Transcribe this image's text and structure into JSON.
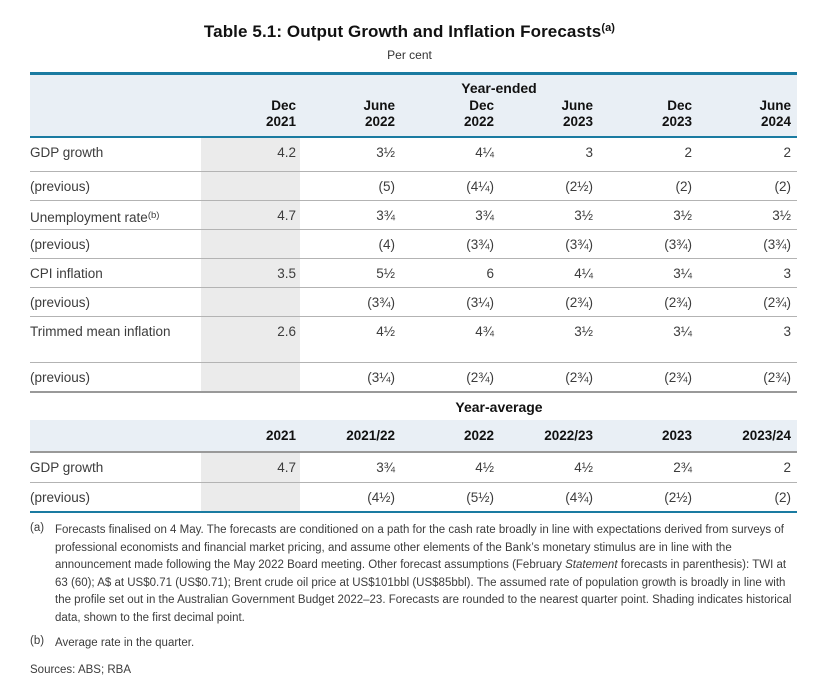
{
  "title": {
    "text": "Table 5.1: Output Growth and Inflation Forecasts",
    "sup": "(a)"
  },
  "subtitle": "Per cent",
  "colors": {
    "accent_teal": "#1a7ba1",
    "header_band": "#e9eff5",
    "historical_shading": "#ebebeb"
  },
  "year_ended": {
    "section_label": "Year-ended",
    "columns": [
      {
        "line1": "Dec",
        "line2": "2021"
      },
      {
        "line1": "June",
        "line2": "2022"
      },
      {
        "line1": "Dec",
        "line2": "2022"
      },
      {
        "line1": "June",
        "line2": "2023"
      },
      {
        "line1": "Dec",
        "line2": "2023"
      },
      {
        "line1": "June",
        "line2": "2024"
      }
    ],
    "rows": [
      {
        "label": "GDP growth",
        "values": [
          "4.2",
          "3½",
          "4¼",
          "3",
          "2",
          "2"
        ]
      },
      {
        "label": "(previous)",
        "values": [
          "",
          "(5)",
          "(4¼)",
          "(2½)",
          "(2)",
          "(2)"
        ]
      },
      {
        "label": "Unemployment rate",
        "sup": "(b)",
        "values": [
          "4.7",
          "3¾",
          "3¾",
          "3½",
          "3½",
          "3½"
        ]
      },
      {
        "label": "(previous)",
        "values": [
          "",
          "(4)",
          "(3¾)",
          "(3¾)",
          "(3¾)",
          "(3¾)"
        ]
      },
      {
        "label": "CPI inflation",
        "values": [
          "3.5",
          "5½",
          "6",
          "4¼",
          "3¼",
          "3"
        ]
      },
      {
        "label": "(previous)",
        "values": [
          "",
          "(3¾)",
          "(3¼)",
          "(2¾)",
          "(2¾)",
          "(2¾)"
        ]
      },
      {
        "label": "Trimmed mean inflation",
        "values": [
          "2.6",
          "4½",
          "4¾",
          "3½",
          "3¼",
          "3"
        ]
      },
      {
        "label": "(previous)",
        "values": [
          "",
          "(3¼)",
          "(2¾)",
          "(2¾)",
          "(2¾)",
          "(2¾)"
        ]
      }
    ]
  },
  "year_average": {
    "section_label": "Year-average",
    "columns": [
      "2021",
      "2021/22",
      "2022",
      "2022/23",
      "2023",
      "2023/24"
    ],
    "rows": [
      {
        "label": "GDP growth",
        "values": [
          "4.7",
          "3¾",
          "4½",
          "4½",
          "2¾",
          "2"
        ]
      },
      {
        "label": "(previous)",
        "values": [
          "",
          "(4½)",
          "(5½)",
          "(4¾)",
          "(2½)",
          "(2)"
        ]
      }
    ]
  },
  "footnotes": {
    "a": {
      "label": "(a)",
      "text1": "Forecasts finalised on 4 May. The forecasts are conditioned on a path for the cash rate broadly in line with expectations derived from surveys of professional economists and financial market pricing, and assume other elements of the Bank’s monetary stimulus are in line with the announcement made following the May 2022 Board meeting. Other forecast assumptions (February ",
      "italic": "Statement",
      "text2": " forecasts in parenthesis): TWI at 63 (60); A$ at US$0.71 (US$0.71); Brent crude oil price at US$101bbl (US$85bbl). The assumed rate of population growth is broadly in line with the profile set out in the Australian Government Budget 2022–23. Forecasts are rounded to the nearest quarter point. Shading indicates historical data, shown to the first decimal point."
    },
    "b": {
      "label": "(b)",
      "text": "Average rate in the quarter."
    }
  },
  "sources": "Sources: ABS; RBA"
}
